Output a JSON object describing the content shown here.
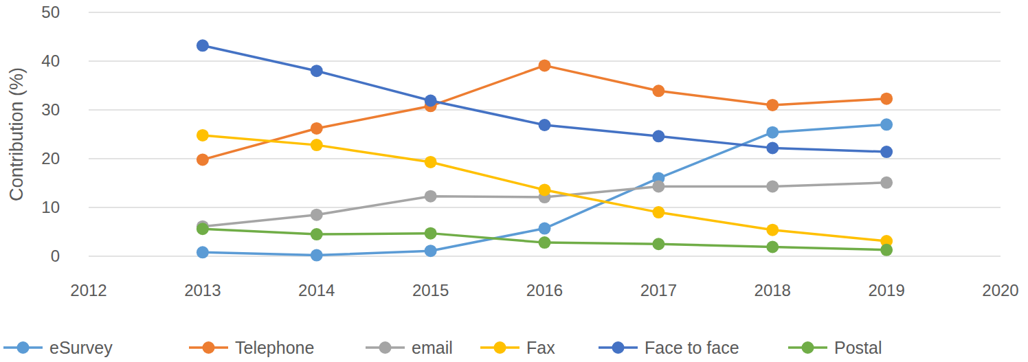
{
  "chart_data": {
    "type": "line",
    "y_label": "Contribution (%)",
    "x": [
      2013,
      2014,
      2015,
      2016,
      2017,
      2018,
      2019
    ],
    "xlim": [
      2012,
      2020
    ],
    "xticks": [
      2012,
      2013,
      2014,
      2015,
      2016,
      2017,
      2018,
      2019,
      2020
    ],
    "ylim": [
      0,
      50
    ],
    "yticks": [
      0,
      10,
      20,
      30,
      40,
      50
    ],
    "grid": true,
    "legend": "bottom",
    "marker": "circle",
    "series": [
      {
        "name": "eSurvey",
        "color": "#5b9bd5",
        "values": [
          0.8,
          0.2,
          1.1,
          5.7,
          16,
          25.4,
          27
        ]
      },
      {
        "name": "Telephone",
        "color": "#ed7d31",
        "values": [
          19.8,
          26.2,
          30.8,
          39.1,
          33.9,
          31,
          32.3
        ]
      },
      {
        "name": "email",
        "color": "#a5a5a5",
        "values": [
          6.1,
          8.5,
          12.3,
          12.1,
          14.3,
          14.3,
          15.1
        ]
      },
      {
        "name": "Fax",
        "color": "#ffc000",
        "values": [
          24.8,
          22.8,
          19.3,
          13.6,
          9,
          5.4,
          3.1
        ]
      },
      {
        "name": "Face to face",
        "color": "#4472c4",
        "values": [
          43.2,
          38,
          31.9,
          26.9,
          24.6,
          22.2,
          21.4
        ]
      },
      {
        "name": "Postal",
        "color": "#70ad47",
        "values": [
          5.6,
          4.5,
          4.7,
          2.8,
          2.5,
          1.9,
          1.3
        ]
      }
    ]
  }
}
